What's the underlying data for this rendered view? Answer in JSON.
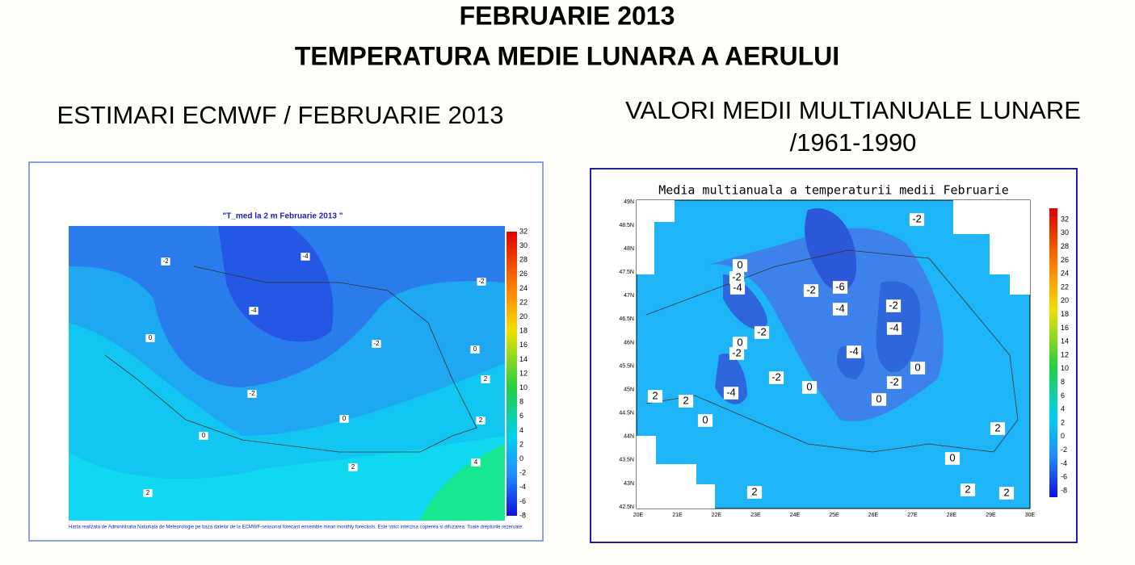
{
  "header": {
    "title": "FEBRUARIE 2013",
    "subtitle": "TEMPERATURA MEDIE LUNARA A AERULUI"
  },
  "left_panel": {
    "heading": "ESTIMARI ECMWF / FEBRUARIE 2013",
    "map_title": "\"T_med la 2 m Februarie 2013 \"",
    "contour_labels": [
      "-4",
      "-4",
      "-2",
      "-2",
      "-2",
      "-2",
      "0",
      "0",
      "0",
      "0",
      "2",
      "2",
      "2",
      "2",
      "4"
    ],
    "colorbar_ticks": [
      32,
      30,
      28,
      26,
      24,
      22,
      20,
      18,
      16,
      14,
      12,
      10,
      8,
      6,
      4,
      2,
      0,
      -2,
      -4,
      -6,
      -8
    ],
    "footnote": "Harta realizata de Administratia Nationala de Meteorologie pe baza datelor de la ECMWF-seasonal forecast ensemble mean monthly forecasts. Este strict interzisa copierea si difuzarea. Toate drepturile rezervate."
  },
  "right_panel": {
    "heading_line1": "VALORI MEDII MULTIANUALE LUNARE",
    "heading_line2": "/1961-1990",
    "map_title": "Media multianuala a temperaturii medii Februarie",
    "contour_labels": [
      "-2",
      "0",
      "-2",
      "-4",
      "-2",
      "-6",
      "-4",
      "-2",
      "-4",
      "-2",
      "0",
      "-2",
      "-4",
      "-2",
      "0",
      "-2",
      "-4",
      "0",
      "0",
      "2",
      "2",
      "0",
      "2",
      "0",
      "2",
      "2",
      "2"
    ],
    "colorbar_ticks": [
      32,
      30,
      28,
      26,
      24,
      22,
      20,
      18,
      16,
      14,
      12,
      10,
      8,
      6,
      4,
      2,
      0,
      -2,
      -4,
      -6,
      -8
    ],
    "lat_labels": [
      "49N",
      "48.5N",
      "48N",
      "47.5N",
      "47N",
      "46.5N",
      "46N",
      "45.5N",
      "45N",
      "44.5N",
      "44N",
      "43.5N",
      "43N",
      "42.5N"
    ],
    "lon_labels": [
      "20E",
      "21E",
      "22E",
      "23E",
      "24E",
      "25E",
      "26E",
      "27E",
      "28E",
      "29E",
      "30E"
    ]
  }
}
